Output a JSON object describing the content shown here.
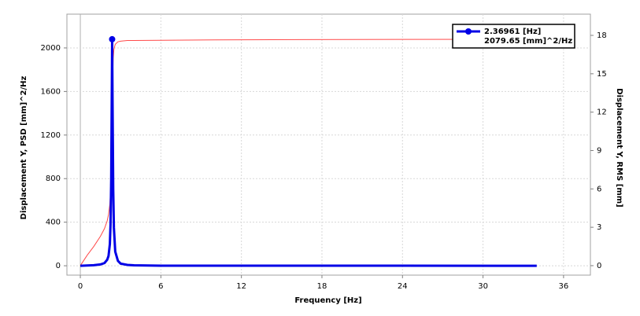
{
  "chart_data": {
    "type": "line",
    "xlabel": "Frequency [Hz]",
    "ylabel": "Displacement Y, PSD [mm]^2/Hz",
    "y2label": "Displacement Y, RMS [mm]",
    "x": [
      0,
      0.5,
      1,
      1.5,
      1.8,
      2.0,
      2.1,
      2.2,
      2.25,
      2.3,
      2.35,
      2.36961,
      2.4,
      2.45,
      2.5,
      2.6,
      2.8,
      3,
      3.5,
      4,
      6,
      10,
      20,
      34
    ],
    "series": [
      {
        "color": "#0000e6",
        "values": [
          0,
          2,
          5,
          12,
          25,
          55,
          90,
          200,
          380,
          800,
          1700,
          2079.65,
          1500,
          700,
          350,
          130,
          45,
          20,
          8,
          4,
          1,
          0.5,
          0.2,
          0.1
        ]
      },
      {
        "color": "#ff4a4a",
        "axis": "y2",
        "values": [
          0,
          0.8,
          1.5,
          2.3,
          2.9,
          3.5,
          4.0,
          4.8,
          5.8,
          7.8,
          11,
          12.5,
          14.5,
          16.2,
          16.9,
          17.3,
          17.5,
          17.55,
          17.6,
          17.6,
          17.62,
          17.65,
          17.68,
          17.7
        ]
      }
    ],
    "marker": {
      "x": 2.36961,
      "y": 2079.65,
      "labels": [
        "2.36961 [Hz]",
        "2079.65 [mm]^2/Hz"
      ]
    },
    "xlim": [
      -1,
      38
    ],
    "xticks": [
      0,
      6,
      12,
      18,
      24,
      30,
      36
    ],
    "ylim": [
      -86,
      2310
    ],
    "yticks": [
      0,
      400,
      800,
      1200,
      1600,
      2000
    ],
    "y2lim": [
      -0.74,
      19.66
    ],
    "y2ticks": [
      0,
      3,
      6,
      9,
      12,
      15,
      18
    ],
    "grid": true
  }
}
